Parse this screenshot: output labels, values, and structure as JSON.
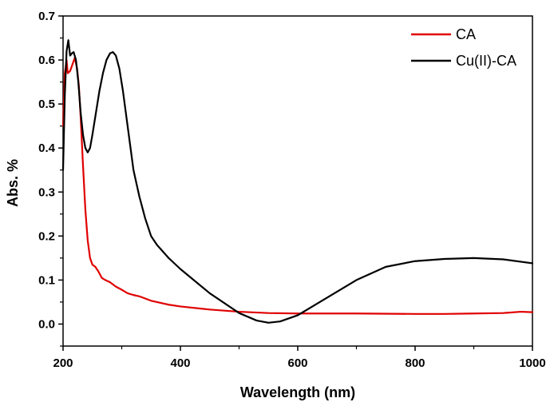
{
  "chart_data": {
    "type": "line",
    "title": "",
    "xlabel": "Wavelength (nm)",
    "ylabel": "Abs. %",
    "xlim": [
      200,
      1000
    ],
    "ylim": [
      -0.05,
      0.7
    ],
    "x_ticks": [
      200,
      400,
      600,
      800,
      1000
    ],
    "x_tick_labels": [
      "200",
      "400",
      "600",
      "800",
      "1000"
    ],
    "y_ticks": [
      0.0,
      0.1,
      0.2,
      0.3,
      0.4,
      0.5,
      0.6,
      0.7
    ],
    "y_tick_labels": [
      "0.0",
      "0.1",
      "0.2",
      "0.3",
      "0.4",
      "0.5",
      "0.6",
      "0.7"
    ],
    "legend_position": "top-right",
    "series": [
      {
        "name": "CA",
        "color": "#e00000",
        "x": [
          200,
          203,
          206,
          208,
          212,
          216,
          220,
          224,
          227,
          230,
          234,
          238,
          242,
          246,
          250,
          255,
          260,
          266,
          272,
          280,
          290,
          300,
          310,
          320,
          330,
          340,
          350,
          360,
          380,
          400,
          450,
          500,
          550,
          600,
          700,
          800,
          850,
          900,
          950,
          980,
          1000
        ],
        "y": [
          0.45,
          0.57,
          0.6,
          0.57,
          0.575,
          0.59,
          0.605,
          0.58,
          0.54,
          0.47,
          0.36,
          0.26,
          0.19,
          0.15,
          0.135,
          0.13,
          0.12,
          0.105,
          0.1,
          0.095,
          0.085,
          0.078,
          0.07,
          0.066,
          0.063,
          0.058,
          0.053,
          0.05,
          0.044,
          0.04,
          0.033,
          0.028,
          0.025,
          0.024,
          0.024,
          0.023,
          0.023,
          0.024,
          0.025,
          0.028,
          0.027
        ]
      },
      {
        "name": "Cu(II)-CA",
        "color": "#000000",
        "x": [
          200,
          203,
          206,
          209,
          212,
          215,
          218,
          222,
          226,
          230,
          234,
          238,
          242,
          246,
          250,
          256,
          262,
          268,
          274,
          280,
          285,
          290,
          296,
          302,
          308,
          314,
          320,
          330,
          340,
          350,
          360,
          380,
          400,
          450,
          500,
          530,
          550,
          570,
          600,
          650,
          700,
          750,
          800,
          850,
          900,
          950,
          1000
        ],
        "y": [
          0.35,
          0.52,
          0.62,
          0.645,
          0.61,
          0.615,
          0.618,
          0.6,
          0.55,
          0.48,
          0.43,
          0.4,
          0.39,
          0.4,
          0.43,
          0.48,
          0.53,
          0.57,
          0.6,
          0.615,
          0.618,
          0.61,
          0.58,
          0.53,
          0.47,
          0.41,
          0.35,
          0.29,
          0.24,
          0.2,
          0.18,
          0.15,
          0.125,
          0.07,
          0.025,
          0.008,
          0.003,
          0.006,
          0.02,
          0.06,
          0.1,
          0.13,
          0.143,
          0.148,
          0.15,
          0.147,
          0.138
        ]
      }
    ]
  }
}
